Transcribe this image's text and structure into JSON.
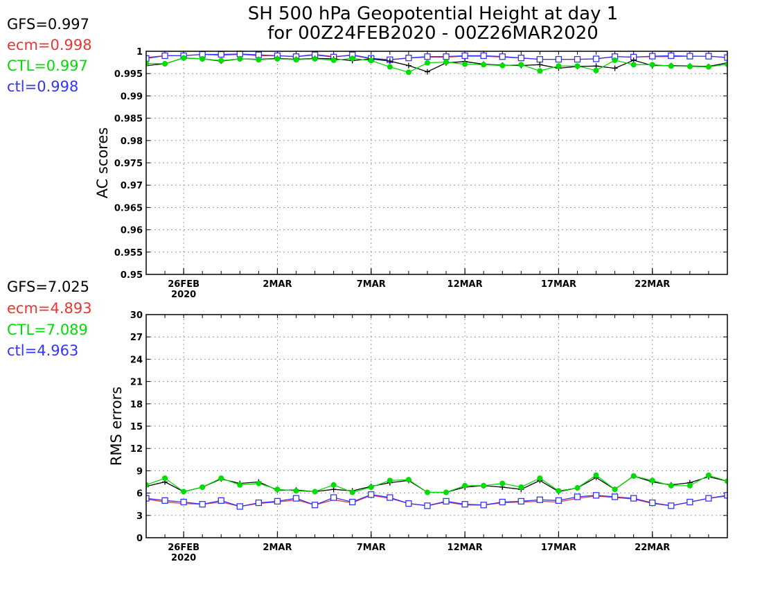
{
  "title_line1": "SH 500 hPa Geopotential Height at day 1",
  "title_line2": "for 00Z24FEB2020 - 00Z26MAR2020",
  "colors": {
    "GFS": "#000000",
    "ecm": "#ee3333",
    "CTL": "#00dd00",
    "ctl": "#3333ff",
    "grid": "#9a9a9a"
  },
  "chart_data": [
    {
      "type": "line",
      "ylabel": "AC scores",
      "ylim": [
        0.95,
        1.0
      ],
      "yticks": [
        "0.95",
        "0.955",
        "0.96",
        "0.965",
        "0.97",
        "0.975",
        "0.98",
        "0.985",
        "0.99",
        "0.995",
        "1"
      ],
      "grid": true,
      "xlim": [
        "2020-02-24",
        "2020-03-26"
      ],
      "x_ticks": [
        {
          "date": "2020-02-26",
          "label": "26FEB",
          "label2": "2020"
        },
        {
          "date": "2020-03-02",
          "label": "2MAR",
          "label2": ""
        },
        {
          "date": "2020-03-07",
          "label": "7MAR",
          "label2": ""
        },
        {
          "date": "2020-03-12",
          "label": "12MAR",
          "label2": ""
        },
        {
          "date": "2020-03-17",
          "label": "17MAR",
          "label2": ""
        },
        {
          "date": "2020-03-22",
          "label": "22MAR",
          "label2": ""
        }
      ],
      "x": [
        "2020-02-24",
        "2020-02-25",
        "2020-02-26",
        "2020-02-27",
        "2020-02-28",
        "2020-02-29",
        "2020-03-01",
        "2020-03-02",
        "2020-03-03",
        "2020-03-04",
        "2020-03-05",
        "2020-03-06",
        "2020-03-07",
        "2020-03-08",
        "2020-03-09",
        "2020-03-10",
        "2020-03-11",
        "2020-03-12",
        "2020-03-13",
        "2020-03-14",
        "2020-03-15",
        "2020-03-16",
        "2020-03-17",
        "2020-03-18",
        "2020-03-19",
        "2020-03-20",
        "2020-03-21",
        "2020-03-22",
        "2020-03-23",
        "2020-03-24",
        "2020-03-25",
        "2020-03-26"
      ],
      "legend": [
        {
          "name": "GFS",
          "value": "GFS=0.997"
        },
        {
          "name": "ecm",
          "value": "ecm=0.998"
        },
        {
          "name": "CTL",
          "value": "CTL=0.997"
        },
        {
          "name": "ctl",
          "value": "ctl=0.998"
        }
      ],
      "series": [
        {
          "name": "GFS",
          "marker": "plus",
          "values": [
            0.9968,
            0.9972,
            0.9985,
            0.9983,
            0.9978,
            0.9983,
            0.9982,
            0.9984,
            0.9982,
            0.9984,
            0.9983,
            0.9979,
            0.9983,
            0.9978,
            0.9968,
            0.9954,
            0.9974,
            0.9977,
            0.9971,
            0.9969,
            0.9968,
            0.997,
            0.9962,
            0.9966,
            0.9967,
            0.9962,
            0.998,
            0.9968,
            0.9968,
            0.9967,
            0.9966,
            0.9974
          ]
        },
        {
          "name": "ecm",
          "marker": "none",
          "values": [
            0.9986,
            0.999,
            0.999,
            0.9993,
            0.9991,
            0.9993,
            0.999,
            0.999,
            0.9988,
            0.9993,
            0.9988,
            0.9991,
            0.9983,
            0.9981,
            0.9985,
            0.9987,
            0.9987,
            0.9989,
            0.9989,
            0.9987,
            0.9985,
            0.9982,
            0.9982,
            0.9982,
            0.9983,
            0.9988,
            0.9987,
            0.9988,
            0.9988,
            0.9989,
            0.9989,
            0.9986
          ]
        },
        {
          "name": "CTL",
          "marker": "dot",
          "values": [
            0.9973,
            0.9972,
            0.9985,
            0.9983,
            0.9979,
            0.9983,
            0.9981,
            0.9983,
            0.9981,
            0.9983,
            0.998,
            0.9984,
            0.9979,
            0.9965,
            0.9953,
            0.9974,
            0.9976,
            0.9971,
            0.997,
            0.9968,
            0.997,
            0.9956,
            0.9967,
            0.9967,
            0.9957,
            0.998,
            0.997,
            0.997,
            0.9967,
            0.9966,
            0.9965,
            0.9971
          ]
        },
        {
          "name": "ctl",
          "marker": "square",
          "values": [
            0.9984,
            0.999,
            0.999,
            0.9993,
            0.9993,
            0.9994,
            0.9992,
            0.999,
            0.9988,
            0.9992,
            0.9987,
            0.9992,
            0.9984,
            0.9981,
            0.9985,
            0.9988,
            0.9988,
            0.999,
            0.999,
            0.9988,
            0.9985,
            0.9982,
            0.9982,
            0.9982,
            0.9983,
            0.9988,
            0.9987,
            0.9989,
            0.999,
            0.9989,
            0.9989,
            0.9986
          ]
        }
      ]
    },
    {
      "type": "line",
      "ylabel": "RMS errors",
      "ylim": [
        0,
        30
      ],
      "yticks": [
        "0",
        "3",
        "6",
        "9",
        "12",
        "15",
        "18",
        "21",
        "24",
        "27",
        "30"
      ],
      "grid": true,
      "xlim": [
        "2020-02-24",
        "2020-03-26"
      ],
      "x_ticks": [
        {
          "date": "2020-02-26",
          "label": "26FEB",
          "label2": "2020"
        },
        {
          "date": "2020-03-02",
          "label": "2MAR",
          "label2": ""
        },
        {
          "date": "2020-03-07",
          "label": "7MAR",
          "label2": ""
        },
        {
          "date": "2020-03-12",
          "label": "12MAR",
          "label2": ""
        },
        {
          "date": "2020-03-17",
          "label": "17MAR",
          "label2": ""
        },
        {
          "date": "2020-03-22",
          "label": "22MAR",
          "label2": ""
        }
      ],
      "x": [
        "2020-02-24",
        "2020-02-25",
        "2020-02-26",
        "2020-02-27",
        "2020-02-28",
        "2020-02-29",
        "2020-03-01",
        "2020-03-02",
        "2020-03-03",
        "2020-03-04",
        "2020-03-05",
        "2020-03-06",
        "2020-03-07",
        "2020-03-08",
        "2020-03-09",
        "2020-03-10",
        "2020-03-11",
        "2020-03-12",
        "2020-03-13",
        "2020-03-14",
        "2020-03-15",
        "2020-03-16",
        "2020-03-17",
        "2020-03-18",
        "2020-03-19",
        "2020-03-20",
        "2020-03-21",
        "2020-03-22",
        "2020-03-23",
        "2020-03-24",
        "2020-03-25",
        "2020-03-26"
      ],
      "legend": [
        {
          "name": "GFS",
          "value": "GFS=7.025"
        },
        {
          "name": "ecm",
          "value": "ecm=4.893"
        },
        {
          "name": "CTL",
          "value": "CTL=7.089"
        },
        {
          "name": "ctl",
          "value": "ctl=4.963"
        }
      ],
      "series": [
        {
          "name": "GFS",
          "marker": "plus",
          "values": [
            6.9,
            7.5,
            6.2,
            6.8,
            7.9,
            7.3,
            7.5,
            6.4,
            6.4,
            6.2,
            6.5,
            6.3,
            6.9,
            7.4,
            7.7,
            6.1,
            6.1,
            6.8,
            7.0,
            6.8,
            6.5,
            7.7,
            6.2,
            6.7,
            8.1,
            6.5,
            8.3,
            7.5,
            7.1,
            7.4,
            8.2,
            7.6
          ]
        },
        {
          "name": "ecm",
          "marker": "none",
          "values": [
            5.2,
            4.8,
            4.6,
            4.5,
            4.8,
            4.2,
            4.6,
            4.8,
            5.1,
            4.4,
            5.1,
            4.7,
            5.7,
            5.3,
            4.6,
            4.3,
            4.8,
            4.4,
            4.4,
            4.7,
            4.8,
            4.9,
            4.8,
            5.3,
            5.6,
            5.4,
            5.2,
            4.6,
            4.3,
            4.8,
            5.3,
            5.6
          ]
        },
        {
          "name": "CTL",
          "marker": "dot",
          "values": [
            7.1,
            8.0,
            6.2,
            6.8,
            8.0,
            7.1,
            7.3,
            6.5,
            6.3,
            6.2,
            7.1,
            6.1,
            6.8,
            7.7,
            7.8,
            6.1,
            6.1,
            7.0,
            7.0,
            7.3,
            6.8,
            8.0,
            6.3,
            6.7,
            8.4,
            6.5,
            8.3,
            7.7,
            7.0,
            7.0,
            8.4,
            7.6
          ]
        },
        {
          "name": "ctl",
          "marker": "square",
          "values": [
            5.3,
            5.0,
            4.8,
            4.5,
            5.0,
            4.2,
            4.7,
            4.9,
            5.3,
            4.4,
            5.4,
            4.8,
            5.8,
            5.4,
            4.6,
            4.3,
            4.9,
            4.5,
            4.4,
            4.8,
            4.9,
            5.1,
            5.0,
            5.5,
            5.7,
            5.5,
            5.3,
            4.7,
            4.3,
            4.8,
            5.3,
            5.7
          ]
        }
      ]
    }
  ]
}
